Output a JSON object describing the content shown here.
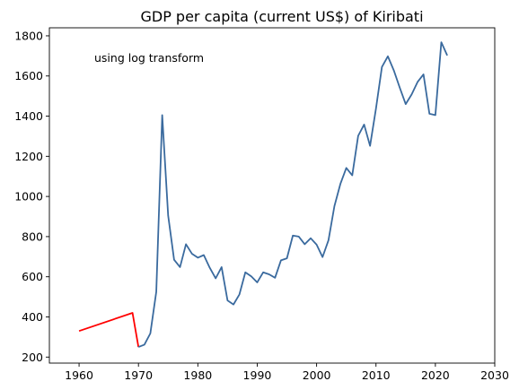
{
  "chart_data": {
    "type": "line",
    "title": "GDP per capita (current US$) of Kiribati",
    "xlabel": "",
    "ylabel": "",
    "xlim": [
      1955,
      2030
    ],
    "ylim": [
      170,
      1840
    ],
    "xticks": [
      1960,
      1970,
      1980,
      1990,
      2000,
      2010,
      2020,
      2030
    ],
    "yticks": [
      200,
      400,
      600,
      800,
      1000,
      1200,
      1400,
      1600,
      1800
    ],
    "grid": false,
    "annotation": "using log transform",
    "series": [
      {
        "color": "#ff0000",
        "points": [
          [
            1960,
            330
          ],
          [
            1969,
            420
          ],
          [
            1970,
            250
          ]
        ]
      },
      {
        "color": "#3a6a9e",
        "points": [
          [
            1970,
            250
          ],
          [
            1971,
            262
          ],
          [
            1972,
            318
          ],
          [
            1973,
            525
          ],
          [
            1974,
            1405
          ],
          [
            1975,
            905
          ],
          [
            1976,
            685
          ],
          [
            1977,
            648
          ],
          [
            1978,
            762
          ],
          [
            1979,
            715
          ],
          [
            1980,
            695
          ],
          [
            1981,
            708
          ],
          [
            1982,
            645
          ],
          [
            1983,
            592
          ],
          [
            1984,
            648
          ],
          [
            1985,
            482
          ],
          [
            1986,
            462
          ],
          [
            1987,
            512
          ],
          [
            1988,
            622
          ],
          [
            1989,
            602
          ],
          [
            1990,
            572
          ],
          [
            1991,
            622
          ],
          [
            1992,
            612
          ],
          [
            1993,
            595
          ],
          [
            1994,
            682
          ],
          [
            1995,
            692
          ],
          [
            1996,
            805
          ],
          [
            1997,
            800
          ],
          [
            1998,
            762
          ],
          [
            1999,
            792
          ],
          [
            2000,
            760
          ],
          [
            2001,
            698
          ],
          [
            2002,
            782
          ],
          [
            2003,
            952
          ],
          [
            2004,
            1062
          ],
          [
            2005,
            1142
          ],
          [
            2006,
            1105
          ],
          [
            2007,
            1302
          ],
          [
            2008,
            1358
          ],
          [
            2009,
            1252
          ],
          [
            2010,
            1438
          ],
          [
            2011,
            1645
          ],
          [
            2012,
            1698
          ],
          [
            2013,
            1628
          ],
          [
            2014,
            1542
          ],
          [
            2015,
            1460
          ],
          [
            2016,
            1508
          ],
          [
            2017,
            1570
          ],
          [
            2018,
            1608
          ],
          [
            2019,
            1412
          ],
          [
            2020,
            1405
          ],
          [
            2021,
            1768
          ],
          [
            2022,
            1702
          ]
        ]
      }
    ]
  }
}
